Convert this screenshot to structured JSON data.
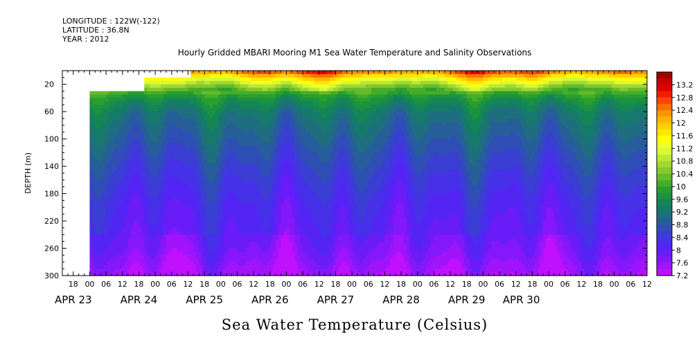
{
  "header": {
    "longitude": "LONGITUDE : 122W(-122)",
    "latitude": "LATITUDE : 36.8N",
    "year": "YEAR : 2012"
  },
  "chart_data": {
    "type": "heatmap",
    "title": "Hourly Gridded MBARI Mooring M1 Sea Water Temperature and Salinity Observations",
    "xlabel": "Sea Water Temperature (Celsius)",
    "ylabel": "DEPTH (m)",
    "x_range_hours": [
      -10,
      204
    ],
    "x_origin": "2012-04-23 00:00",
    "ylim": [
      300,
      0
    ],
    "y_ticks": [
      20,
      60,
      100,
      140,
      180,
      220,
      260,
      300
    ],
    "x_hour_ticks": [
      {
        "h": -6,
        "label": "18"
      },
      {
        "h": 0,
        "label": "00"
      },
      {
        "h": 6,
        "label": "06"
      },
      {
        "h": 12,
        "label": "12"
      },
      {
        "h": 18,
        "label": "18"
      },
      {
        "h": 24,
        "label": "00"
      },
      {
        "h": 30,
        "label": "06"
      },
      {
        "h": 36,
        "label": "12"
      },
      {
        "h": 42,
        "label": "18"
      },
      {
        "h": 48,
        "label": "00"
      },
      {
        "h": 54,
        "label": "06"
      },
      {
        "h": 60,
        "label": "12"
      },
      {
        "h": 66,
        "label": "18"
      },
      {
        "h": 72,
        "label": "00"
      },
      {
        "h": 78,
        "label": "06"
      },
      {
        "h": 84,
        "label": "12"
      },
      {
        "h": 90,
        "label": "18"
      },
      {
        "h": 96,
        "label": "00"
      },
      {
        "h": 102,
        "label": "06"
      },
      {
        "h": 108,
        "label": "12"
      },
      {
        "h": 114,
        "label": "18"
      },
      {
        "h": 120,
        "label": "00"
      },
      {
        "h": 126,
        "label": "06"
      },
      {
        "h": 132,
        "label": "12"
      },
      {
        "h": 138,
        "label": "18"
      },
      {
        "h": 144,
        "label": "00"
      },
      {
        "h": 150,
        "label": "06"
      },
      {
        "h": 156,
        "label": "12"
      },
      {
        "h": 162,
        "label": "18"
      },
      {
        "h": 168,
        "label": "00"
      },
      {
        "h": 174,
        "label": "06"
      },
      {
        "h": 180,
        "label": "12"
      },
      {
        "h": 186,
        "label": "18"
      },
      {
        "h": 192,
        "label": "00"
      },
      {
        "h": 198,
        "label": "06"
      },
      {
        "h": 204,
        "label": "12"
      }
    ],
    "day_labels": [
      {
        "h": -6,
        "label": "APR 23"
      },
      {
        "h": 18,
        "label": "APR 24"
      },
      {
        "h": 42,
        "label": "APR 25"
      },
      {
        "h": 66,
        "label": "APR 26"
      },
      {
        "h": 90,
        "label": "APR 27"
      },
      {
        "h": 114,
        "label": "APR 28"
      },
      {
        "h": 138,
        "label": "APR 29"
      },
      {
        "h": 158,
        "label": "APR 30"
      }
    ],
    "data_coverage": [
      {
        "from_h": 0,
        "to_h": 20,
        "top_depth": 30
      },
      {
        "from_h": 20,
        "to_h": 37,
        "top_depth": 10
      },
      {
        "from_h": 37,
        "to_h": 204,
        "top_depth": 0
      }
    ],
    "colorbar": {
      "labels": [
        "13.2",
        "12.8",
        "12.4",
        "12",
        "11.6",
        "11.2",
        "10.8",
        "10.4",
        "10",
        "9.6",
        "9.2",
        "8.8",
        "8.4",
        "8",
        "7.6",
        "7.2"
      ],
      "levels": [
        13.4,
        13.2,
        13.0,
        12.8,
        12.6,
        12.4,
        12.2,
        12.0,
        11.8,
        11.6,
        11.4,
        11.2,
        11.0,
        10.8,
        10.6,
        10.4,
        10.2,
        10.0,
        9.8,
        9.6,
        9.4,
        9.2,
        9.0,
        8.8,
        8.6,
        8.4,
        8.2,
        8.0,
        7.8,
        7.6,
        7.4,
        7.2
      ],
      "colors": [
        "#a00000",
        "#c80000",
        "#e00000",
        "#f41c00",
        "#ff4600",
        "#ff6e00",
        "#ff9400",
        "#ffb400",
        "#ffce00",
        "#ffe600",
        "#ffff00",
        "#f0ff2a",
        "#d8f838",
        "#bde834",
        "#a2d830",
        "#86c82c",
        "#66bb2a",
        "#45ad2a",
        "#2a9e2e",
        "#1a9240",
        "#148656",
        "#167a6a",
        "#1e6e80",
        "#265e9a",
        "#2f4eb6",
        "#3a3ed2",
        "#4630e8",
        "#5424f4",
        "#6a1cf8",
        "#8418fa",
        "#a014fc",
        "#c010fe"
      ]
    },
    "temperature_profile": {
      "depths": [
        0,
        10,
        20,
        30,
        40,
        60,
        80,
        100,
        120,
        140,
        160,
        180,
        200,
        220,
        240,
        260,
        280,
        300
      ],
      "values": [
        12.6,
        11.6,
        10.8,
        10.1,
        9.6,
        9.15,
        8.95,
        8.78,
        8.6,
        8.45,
        8.3,
        8.18,
        8.05,
        7.98,
        7.9,
        7.8,
        7.6,
        7.4
      ]
    }
  }
}
